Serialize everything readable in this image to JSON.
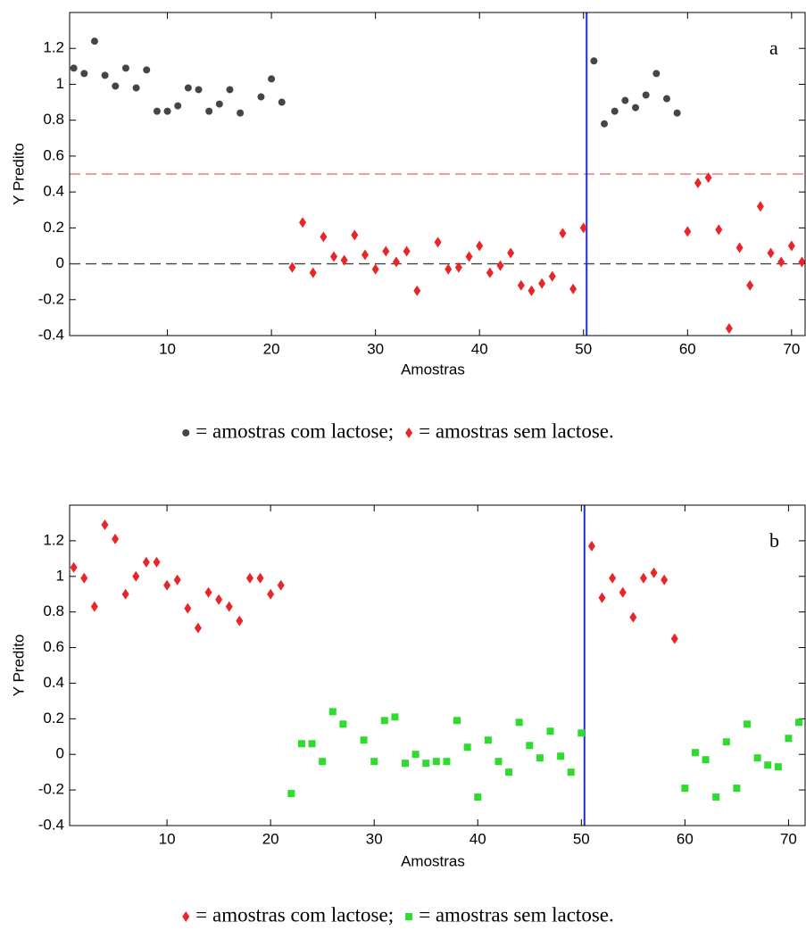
{
  "chart_data": [
    {
      "type": "scatter",
      "panel_label": "a",
      "xlabel": "Amostras",
      "ylabel": "Y Predito",
      "xlim": [
        0.6,
        71.3
      ],
      "ylim": [
        -0.4,
        1.4
      ],
      "xticks": [
        10,
        20,
        30,
        40,
        50,
        60,
        70
      ],
      "yticks": [
        -0.4,
        -0.2,
        0,
        0.2,
        0.4,
        0.6,
        0.8,
        1,
        1.2
      ],
      "hlines": [
        {
          "value": 0.5,
          "color": "#e06666"
        },
        {
          "value": 0,
          "color": "#444444"
        }
      ],
      "vline": 50.3,
      "vline_color": "#1f2fd0",
      "series": [
        {
          "name": "= amostras com lactose;",
          "color": "#454545",
          "marker": "circle",
          "x": [
            1,
            2,
            3,
            4,
            5,
            6,
            7,
            8,
            9,
            10,
            11,
            12,
            13,
            14,
            15,
            16,
            17,
            19,
            20,
            21,
            51,
            52,
            53,
            54,
            55,
            56,
            57,
            58,
            59
          ],
          "values": [
            1.09,
            1.06,
            1.24,
            1.05,
            0.99,
            1.09,
            0.98,
            1.08,
            0.85,
            0.85,
            0.88,
            0.98,
            0.97,
            0.85,
            0.89,
            0.97,
            0.84,
            0.93,
            1.03,
            0.9,
            1.13,
            0.78,
            0.85,
            0.91,
            0.87,
            0.94,
            1.06,
            0.92,
            0.84
          ]
        },
        {
          "name": "= amostras sem lactose.",
          "color": "#e8262a",
          "marker": "diamond",
          "x": [
            22,
            23,
            24,
            25,
            26,
            27,
            28,
            29,
            30,
            31,
            32,
            33,
            34,
            36,
            37,
            38,
            39,
            40,
            41,
            42,
            43,
            44,
            45,
            46,
            47,
            48,
            49,
            50,
            60,
            61,
            62,
            63,
            64,
            65,
            66,
            67,
            68,
            69,
            70,
            71
          ],
          "values": [
            -0.02,
            0.23,
            -0.05,
            0.15,
            0.04,
            0.02,
            0.16,
            0.05,
            -0.03,
            0.07,
            0.01,
            0.07,
            -0.15,
            0.12,
            -0.03,
            -0.02,
            0.04,
            0.1,
            -0.05,
            -0.01,
            0.06,
            -0.12,
            -0.15,
            -0.11,
            -0.07,
            0.17,
            -0.14,
            0.2,
            0.18,
            0.45,
            0.48,
            0.19,
            -0.36,
            0.09,
            -0.12,
            0.32,
            0.06,
            0.01,
            0.1,
            0.01
          ]
        }
      ]
    },
    {
      "type": "scatter",
      "panel_label": "b",
      "xlabel": "Amostras",
      "ylabel": "Y Predito",
      "xlim": [
        0.6,
        71.6
      ],
      "ylim": [
        -0.4,
        1.4
      ],
      "xticks": [
        10,
        20,
        30,
        40,
        50,
        60,
        70
      ],
      "yticks": [
        -0.4,
        -0.2,
        0,
        0.2,
        0.4,
        0.6,
        0.8,
        1,
        1.2
      ],
      "vline": 50.3,
      "vline_color": "#1f2fd0",
      "series": [
        {
          "name": "= amostras com lactose;",
          "color": "#e8262a",
          "marker": "diamond",
          "x": [
            1,
            2,
            3,
            4,
            5,
            6,
            7,
            8,
            9,
            10,
            11,
            12,
            13,
            14,
            15,
            16,
            17,
            18,
            19,
            20,
            21,
            51,
            52,
            53,
            54,
            55,
            56,
            57,
            58,
            59
          ],
          "values": [
            1.05,
            0.99,
            0.83,
            1.29,
            1.21,
            0.9,
            1.0,
            1.08,
            1.08,
            0.95,
            0.98,
            0.82,
            0.71,
            0.91,
            0.87,
            0.83,
            0.75,
            0.99,
            0.99,
            0.9,
            0.95,
            1.17,
            0.88,
            0.99,
            0.91,
            0.77,
            0.99,
            1.02,
            0.98,
            0.65
          ]
        },
        {
          "name": "= amostras sem lactose.",
          "color": "#2ddc2d",
          "marker": "square",
          "x": [
            22,
            23,
            24,
            25,
            26,
            27,
            29,
            30,
            31,
            32,
            33,
            34,
            35,
            36,
            37,
            38,
            39,
            40,
            41,
            42,
            43,
            44,
            45,
            46,
            47,
            48,
            49,
            50,
            60,
            61,
            62,
            63,
            64,
            65,
            66,
            67,
            68,
            69,
            70,
            71
          ],
          "values": [
            -0.22,
            0.06,
            0.06,
            -0.04,
            0.24,
            0.17,
            0.08,
            -0.04,
            0.19,
            0.21,
            -0.05,
            0.0,
            -0.05,
            -0.04,
            -0.04,
            0.19,
            0.04,
            -0.24,
            0.08,
            -0.04,
            -0.1,
            0.18,
            0.05,
            -0.02,
            0.13,
            -0.01,
            -0.1,
            0.12,
            -0.19,
            0.01,
            -0.03,
            -0.24,
            0.07,
            -0.19,
            0.17,
            -0.02,
            -0.06,
            -0.07,
            0.09,
            0.18
          ]
        }
      ]
    }
  ]
}
